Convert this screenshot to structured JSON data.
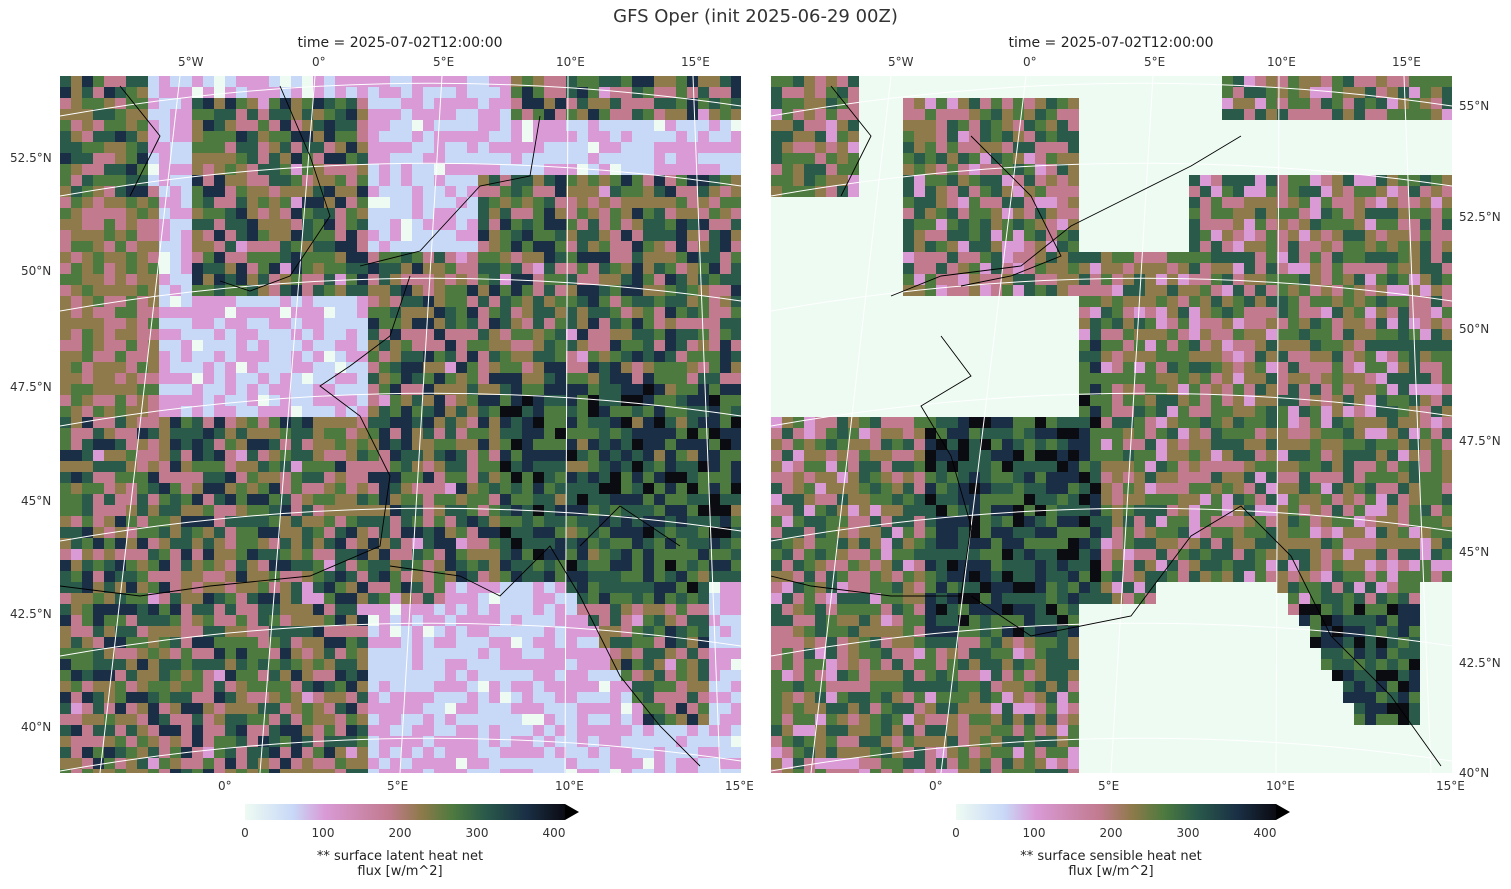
{
  "figure": {
    "suptitle": "GFS Oper (init 2025-06-29 00Z)"
  },
  "left_panel": {
    "title": "time = 2025-07-02T12:00:00",
    "top_ticks": [
      "5°W",
      "0°",
      "5°E",
      "10°E",
      "15°E"
    ],
    "bottom_ticks": [
      "0°",
      "5°E",
      "10°E",
      "15°E"
    ],
    "lat_ticks": [
      "52.5°N",
      "50°N",
      "47.5°N",
      "45°N",
      "42.5°N",
      "40°N"
    ],
    "colorbar": {
      "ticks": [
        "0",
        "100",
        "200",
        "300",
        "400"
      ],
      "label_line1": "** surface latent heat net",
      "label_line2": "flux [w/m^2]"
    }
  },
  "right_panel": {
    "title": "time = 2025-07-02T12:00:00",
    "top_ticks": [
      "5°W",
      "0°",
      "5°E",
      "10°E",
      "15°E"
    ],
    "bottom_ticks": [
      "0°",
      "5°E",
      "10°E",
      "15°E"
    ],
    "lat_ticks": [
      "55°N",
      "52.5°N",
      "50°N",
      "47.5°N",
      "45°N",
      "42.5°N",
      "40°N"
    ],
    "colorbar": {
      "ticks": [
        "0",
        "100",
        "200",
        "300",
        "400"
      ],
      "label_line1": "** surface sensible heat net",
      "label_line2": "flux [w/m^2]"
    }
  },
  "colormap": {
    "name": "cubehelix-like",
    "colors": [
      "#eefbf3",
      "#c8d8f7",
      "#d99ad6",
      "#c17a8e",
      "#8e7a4a",
      "#4d7a3f",
      "#2a5a4a",
      "#1a2f45",
      "#0b0b12"
    ]
  }
}
